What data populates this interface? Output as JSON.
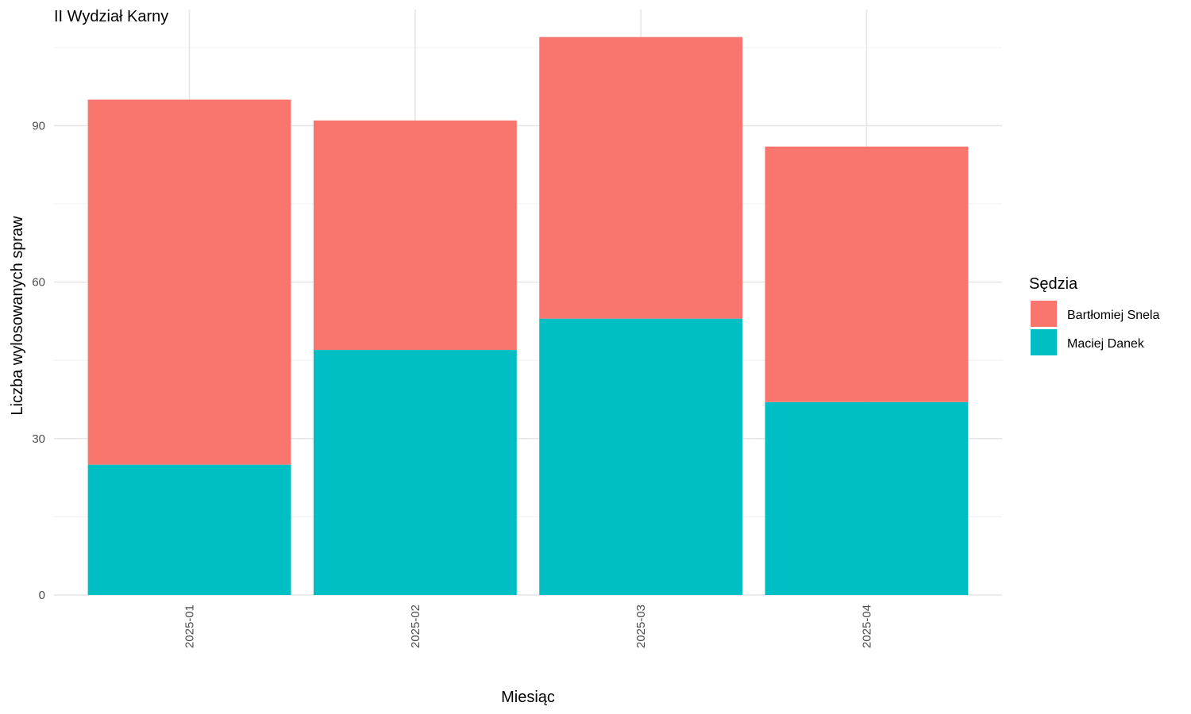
{
  "chart_data": {
    "type": "bar",
    "stacked": true,
    "title": "II Wydział Karny",
    "xlabel": "Miesiąc",
    "ylabel": "Liczba wylosowanych spraw",
    "categories": [
      "2025-01",
      "2025-02",
      "2025-03",
      "2025-04"
    ],
    "series": [
      {
        "name": "Maciej Danek",
        "color": "#00BFC4",
        "values": [
          25,
          47,
          53,
          37
        ]
      },
      {
        "name": "Bartłomiej Snela",
        "color": "#F8766D",
        "values": [
          70,
          44,
          54,
          49
        ]
      }
    ],
    "ylim": [
      0,
      107
    ],
    "yticks": [
      0,
      30,
      60,
      90
    ],
    "grid": true,
    "legend": {
      "title": "Sędzia",
      "position": "right",
      "items": [
        "Bartłomiej Snela",
        "Maciej Danek"
      ]
    }
  }
}
